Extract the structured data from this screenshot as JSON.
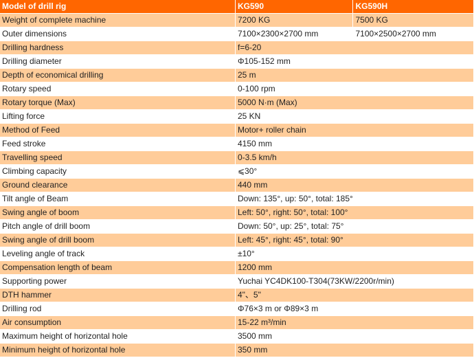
{
  "colors": {
    "header_bg": "#FF6600",
    "alt_row_bg": "#FFCC99",
    "row_bg": "#FFFFFF"
  },
  "table": {
    "header": [
      "Model of drill rig",
      "KG590",
      "KG590H"
    ],
    "rows": [
      [
        "Weight of complete machine",
        "7200 KG",
        "7500 KG"
      ],
      [
        "Outer dimensions",
        "7100×2300×2700 mm",
        "7100×2500×2700 mm"
      ],
      [
        "Drilling hardness",
        "f=6-20"
      ],
      [
        "Drilling diameter",
        "Φ105-152 mm"
      ],
      [
        "Depth of economical drilling",
        "25 m"
      ],
      [
        "Rotary speed",
        "0-100 rpm"
      ],
      [
        "Rotary torque (Max)",
        "5000 N·m (Max)"
      ],
      [
        "Lifting force",
        "25 KN"
      ],
      [
        "Method of Feed",
        "Motor+ roller chain"
      ],
      [
        "Feed stroke",
        "4150 mm"
      ],
      [
        "Travelling speed",
        "0-3.5 km/h"
      ],
      [
        "Climbing capacity",
        "⩽30°"
      ],
      [
        "Ground clearance",
        "440 mm"
      ],
      [
        "Tilt angle of Beam",
        "Down: 135°, up: 50°, total: 185°"
      ],
      [
        "Swing angle of boom",
        "Left: 50°, right: 50°, total: 100°"
      ],
      [
        "Pitch angle of drill boom",
        "Down: 50°, up: 25°, total: 75°"
      ],
      [
        "Swing angle of drill boom",
        "Left: 45°, right: 45°, total: 90°"
      ],
      [
        "Leveling angle of track",
        "±10°"
      ],
      [
        "Compensation length of beam",
        "1200 mm"
      ],
      [
        "Supporting power",
        "Yuchai YC4DK100-T304(73KW/2200r/min)"
      ],
      [
        "DTH hammer",
        "4\"、5\""
      ],
      [
        "Drilling rod",
        "Φ76×3 m or Φ89×3 m"
      ],
      [
        "Air consumption",
        "15-22 m³/min"
      ],
      [
        "Maximum height of horizontal hole",
        "3500 mm"
      ],
      [
        "Minimum height of horizontal hole",
        "350 mm"
      ]
    ]
  }
}
